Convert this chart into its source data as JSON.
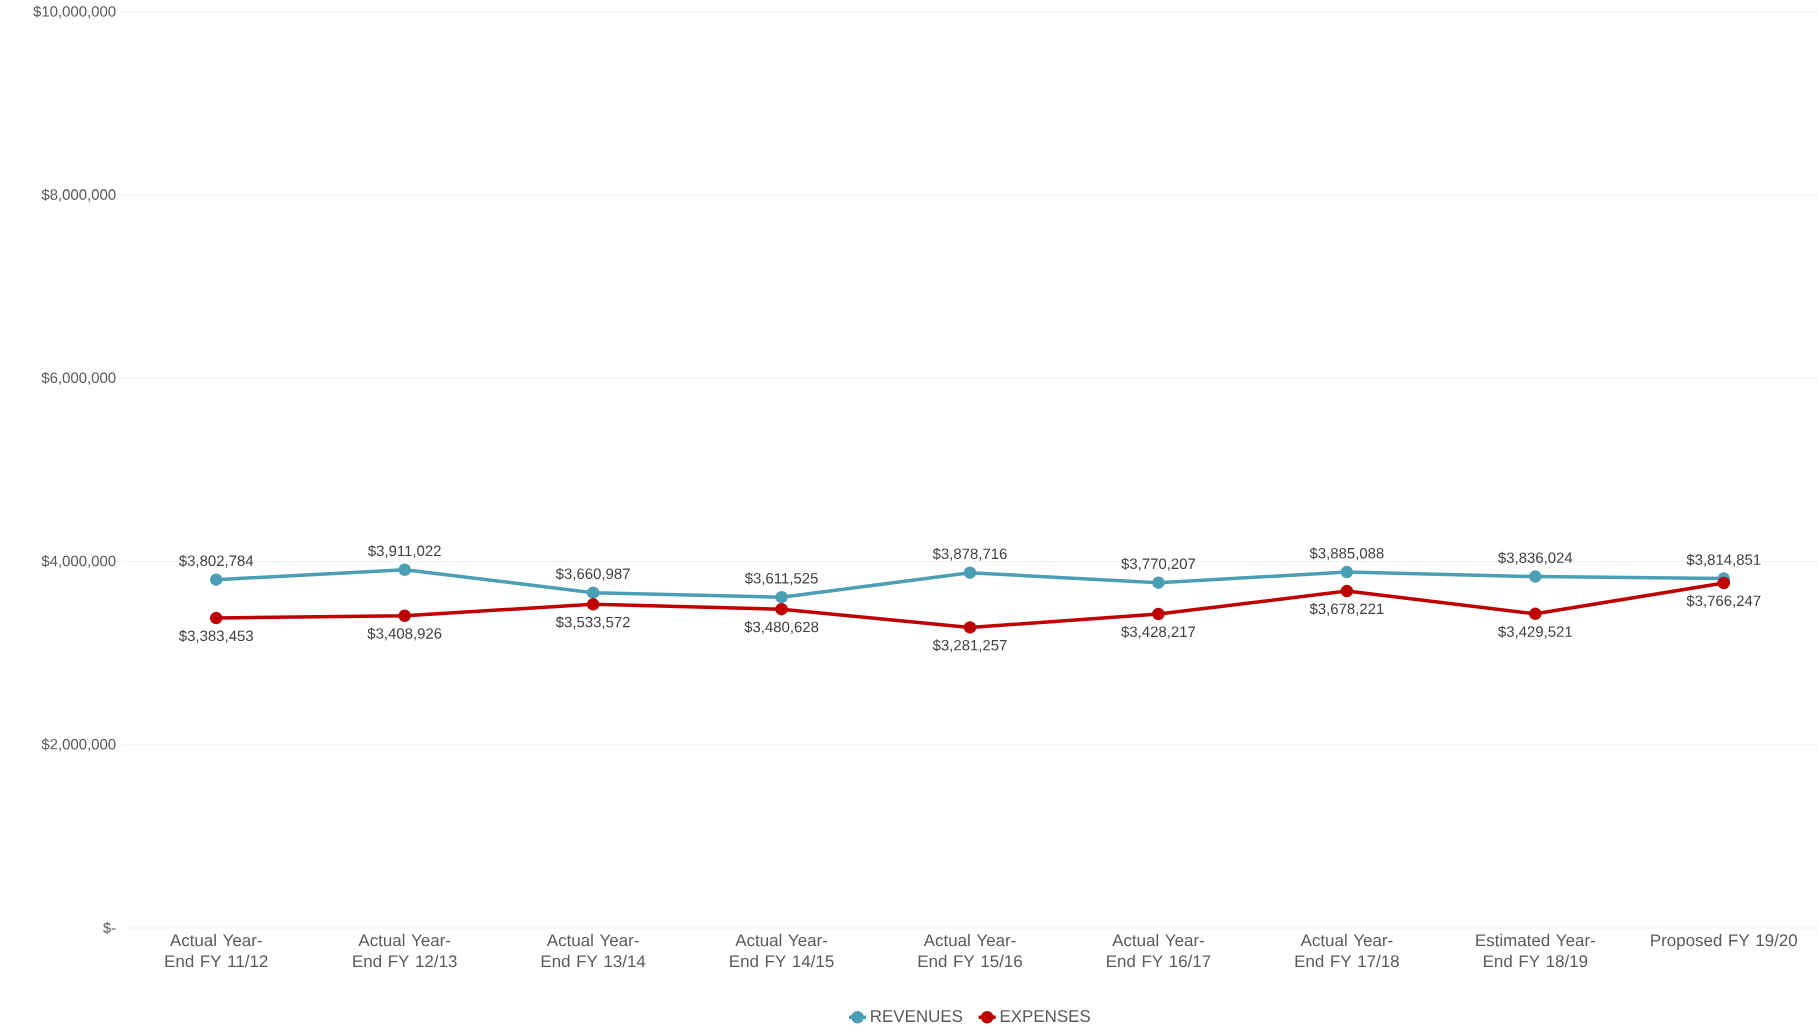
{
  "chart_data": {
    "type": "line",
    "categories": [
      "Actual Year-End FY 11/12",
      "Actual Year-End FY 12/13",
      "Actual Year-End FY 13/14",
      "Actual Year-End FY 14/15",
      "Actual Year-End FY 15/16",
      "Actual Year-End FY 16/17",
      "Actual Year-End FY 17/18",
      "Estimated Year-End FY 18/19",
      "Proposed FY 19/20"
    ],
    "series": [
      {
        "name": "REVENUES",
        "color": "#4a9fb7",
        "values": [
          3802784,
          3911022,
          3660987,
          3611525,
          3878716,
          3770207,
          3885088,
          3836024,
          3814851
        ],
        "value_labels": [
          "$3,802,784",
          "$3,911,022",
          "$3,660,987",
          "$3,611,525",
          "$3,878,716",
          "$3,770,207",
          "$3,885,088",
          "$3,836,024",
          "$3,814,851"
        ]
      },
      {
        "name": "EXPENSES",
        "color": "#c00000",
        "values": [
          3383453,
          3408926,
          3533572,
          3480628,
          3281257,
          3428217,
          3678221,
          3429521,
          3766247
        ],
        "value_labels": [
          "$3,383,453",
          "$3,408,926",
          "$3,533,572",
          "$3,480,628",
          "$3,281,257",
          "$3,428,217",
          "$3,678,221",
          "$3,429,521",
          "$3,766,247"
        ]
      }
    ],
    "ylim": [
      0,
      10000000
    ],
    "yticks": [
      {
        "value": 0,
        "label": "$-"
      },
      {
        "value": 2000000,
        "label": "$2,000,000"
      },
      {
        "value": 4000000,
        "label": "$4,000,000"
      },
      {
        "value": 6000000,
        "label": "$6,000,000"
      },
      {
        "value": 8000000,
        "label": "$8,000,000"
      },
      {
        "value": 10000000,
        "label": "$10,000,000"
      }
    ],
    "grid": "y",
    "legend": "bottom",
    "marker": "circle",
    "line_style": "solid"
  }
}
